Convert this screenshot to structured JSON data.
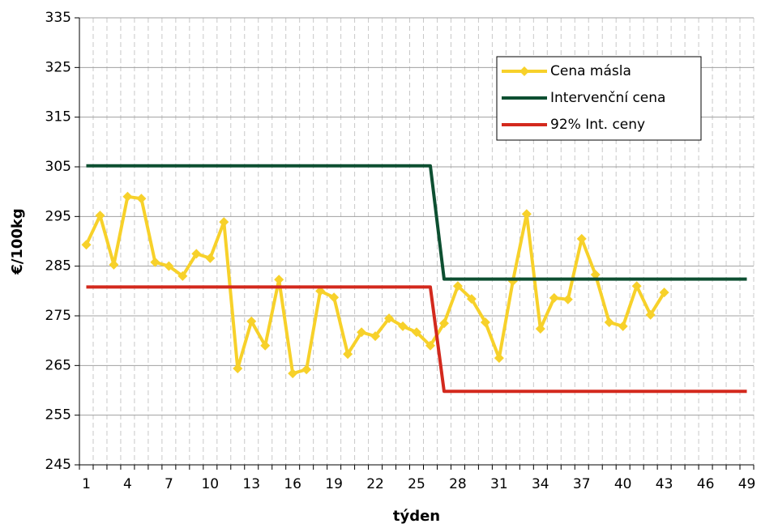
{
  "chart_data": {
    "type": "line",
    "xlabel": "týden",
    "ylabel": "€/100kg",
    "categories": [
      1,
      null,
      null,
      4,
      null,
      null,
      7,
      null,
      null,
      10,
      null,
      null,
      13,
      null,
      null,
      16,
      null,
      null,
      19,
      null,
      null,
      22,
      null,
      null,
      25,
      null,
      null,
      28,
      null,
      null,
      31,
      null,
      null,
      34,
      null,
      null,
      37,
      null,
      null,
      40,
      null,
      null,
      43,
      null,
      null,
      46,
      null,
      null,
      49
    ],
    "series": [
      {
        "name": "Cena másla",
        "color": "#f7d12a",
        "marker": "diamond",
        "values": [
          289.3,
          295.2,
          285.3,
          299,
          298.6,
          285.8,
          285,
          283,
          287.5,
          286.6,
          293.9,
          264.4,
          273.9,
          269,
          282.3,
          263.4,
          264.2,
          280,
          278.7,
          267.3,
          271.7,
          270.9,
          274.5,
          272.9,
          271.7,
          269,
          273.5,
          281,
          278.4,
          273.7,
          266.5,
          282,
          295.5,
          272.4,
          278.6,
          278.3,
          290.5,
          283.3,
          273.7,
          272.9,
          281,
          275.2,
          279.7,
          null,
          null,
          null,
          null,
          null,
          null
        ]
      },
      {
        "name": "Intervenční cena",
        "color": "#0d4f31",
        "values": [
          305.2,
          305.2,
          305.2,
          305.2,
          305.2,
          305.2,
          305.2,
          305.2,
          305.2,
          305.2,
          305.2,
          305.2,
          305.2,
          305.2,
          305.2,
          305.2,
          305.2,
          305.2,
          305.2,
          305.2,
          305.2,
          305.2,
          305.2,
          305.2,
          305.2,
          305.2,
          282.4,
          282.4,
          282.4,
          282.4,
          282.4,
          282.4,
          282.4,
          282.4,
          282.4,
          282.4,
          282.4,
          282.4,
          282.4,
          282.4,
          282.4,
          282.4,
          282.4,
          282.4,
          282.4,
          282.4,
          282.4,
          282.4,
          282.4
        ]
      },
      {
        "name": "92% Int. ceny",
        "color": "#d3291d",
        "values": [
          280.8,
          280.8,
          280.8,
          280.8,
          280.8,
          280.8,
          280.8,
          280.8,
          280.8,
          280.8,
          280.8,
          280.8,
          280.8,
          280.8,
          280.8,
          280.8,
          280.8,
          280.8,
          280.8,
          280.8,
          280.8,
          280.8,
          280.8,
          280.8,
          280.8,
          280.8,
          259.8,
          259.8,
          259.8,
          259.8,
          259.8,
          259.8,
          259.8,
          259.8,
          259.8,
          259.8,
          259.8,
          259.8,
          259.8,
          259.8,
          259.8,
          259.8,
          259.8,
          259.8,
          259.8,
          259.8,
          259.8,
          259.8,
          259.8
        ]
      }
    ],
    "ylim": [
      245,
      335
    ],
    "yticks": [
      245,
      255,
      265,
      275,
      285,
      295,
      305,
      315,
      325,
      335
    ],
    "grid": true,
    "legend": "upper right"
  }
}
